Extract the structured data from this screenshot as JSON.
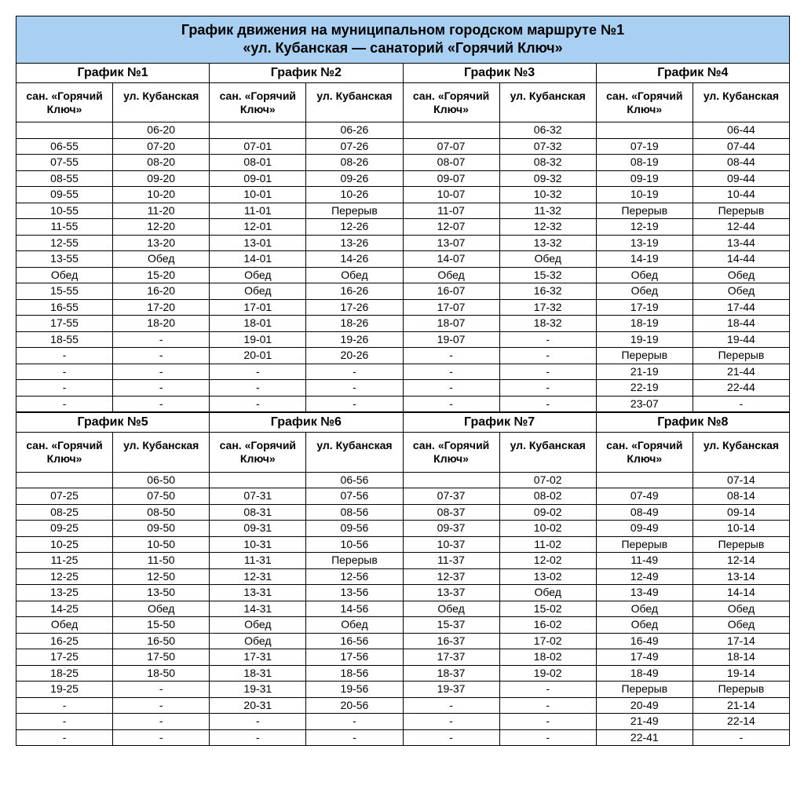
{
  "title_line1": "График движения на муниципальном городском маршруте №1",
  "title_line2": "«ул. Кубанская — санаторий «Горячий Ключ»",
  "header_stop1": "сан. «Горячий Ключ»",
  "header_stop2": "ул. Кубанская",
  "colors": {
    "title_bg": "#a9d0f2",
    "border": "#000000",
    "text": "#000000",
    "bg": "#ffffff"
  },
  "sections": [
    {
      "graphs": [
        {
          "label": "График №1",
          "rows": [
            [
              "",
              "06-20"
            ],
            [
              "06-55",
              "07-20"
            ],
            [
              "07-55",
              "08-20"
            ],
            [
              "08-55",
              "09-20"
            ],
            [
              "09-55",
              "10-20"
            ],
            [
              "10-55",
              "11-20"
            ],
            [
              "11-55",
              "12-20"
            ],
            [
              "12-55",
              "13-20"
            ],
            [
              "13-55",
              "Обед"
            ],
            [
              "Обед",
              "15-20"
            ],
            [
              "15-55",
              "16-20"
            ],
            [
              "16-55",
              "17-20"
            ],
            [
              "17-55",
              "18-20"
            ],
            [
              "18-55",
              "-"
            ],
            [
              "-",
              "-"
            ],
            [
              "-",
              "-"
            ],
            [
              "-",
              "-"
            ],
            [
              "-",
              "-"
            ]
          ]
        },
        {
          "label": "График №2",
          "rows": [
            [
              "",
              "06-26"
            ],
            [
              "07-01",
              "07-26"
            ],
            [
              "08-01",
              "08-26"
            ],
            [
              "09-01",
              "09-26"
            ],
            [
              "10-01",
              "10-26"
            ],
            [
              "11-01",
              "Перерыв"
            ],
            [
              "12-01",
              "12-26"
            ],
            [
              "13-01",
              "13-26"
            ],
            [
              "14-01",
              "14-26"
            ],
            [
              "Обед",
              "Обед"
            ],
            [
              "Обед",
              "16-26"
            ],
            [
              "17-01",
              "17-26"
            ],
            [
              "18-01",
              "18-26"
            ],
            [
              "19-01",
              "19-26"
            ],
            [
              "20-01",
              "20-26"
            ],
            [
              "-",
              "-"
            ],
            [
              "-",
              "-"
            ],
            [
              "-",
              "-"
            ]
          ]
        },
        {
          "label": "График №3",
          "rows": [
            [
              "",
              "06-32"
            ],
            [
              "07-07",
              "07-32"
            ],
            [
              "08-07",
              "08-32"
            ],
            [
              "09-07",
              "09-32"
            ],
            [
              "10-07",
              "10-32"
            ],
            [
              "11-07",
              "11-32"
            ],
            [
              "12-07",
              "12-32"
            ],
            [
              "13-07",
              "13-32"
            ],
            [
              "14-07",
              "Обед"
            ],
            [
              "Обед",
              "15-32"
            ],
            [
              "16-07",
              "16-32"
            ],
            [
              "17-07",
              "17-32"
            ],
            [
              "18-07",
              "18-32"
            ],
            [
              "19-07",
              "-"
            ],
            [
              "-",
              "-"
            ],
            [
              "-",
              "-"
            ],
            [
              "-",
              "-"
            ],
            [
              "-",
              "-"
            ]
          ]
        },
        {
          "label": "График №4",
          "rows": [
            [
              "",
              "06-44"
            ],
            [
              "07-19",
              "07-44"
            ],
            [
              "08-19",
              "08-44"
            ],
            [
              "09-19",
              "09-44"
            ],
            [
              "10-19",
              "10-44"
            ],
            [
              "Перерыв",
              "Перерыв"
            ],
            [
              "12-19",
              "12-44"
            ],
            [
              "13-19",
              "13-44"
            ],
            [
              "14-19",
              "14-44"
            ],
            [
              "Обед",
              "Обед"
            ],
            [
              "Обед",
              "Обед"
            ],
            [
              "17-19",
              "17-44"
            ],
            [
              "18-19",
              "18-44"
            ],
            [
              "19-19",
              "19-44"
            ],
            [
              "Перерыв",
              "Перерыв"
            ],
            [
              "21-19",
              "21-44"
            ],
            [
              "22-19",
              "22-44"
            ],
            [
              "23-07",
              "-"
            ]
          ]
        }
      ]
    },
    {
      "graphs": [
        {
          "label": "График №5",
          "rows": [
            [
              "",
              "06-50"
            ],
            [
              "07-25",
              "07-50"
            ],
            [
              "08-25",
              "08-50"
            ],
            [
              "09-25",
              "09-50"
            ],
            [
              "10-25",
              "10-50"
            ],
            [
              "11-25",
              "11-50"
            ],
            [
              "12-25",
              "12-50"
            ],
            [
              "13-25",
              "13-50"
            ],
            [
              "14-25",
              "Обед"
            ],
            [
              "Обед",
              "15-50"
            ],
            [
              "16-25",
              "16-50"
            ],
            [
              "17-25",
              "17-50"
            ],
            [
              "18-25",
              "18-50"
            ],
            [
              "19-25",
              "-"
            ],
            [
              "-",
              "-"
            ],
            [
              "-",
              "-"
            ],
            [
              "-",
              "-"
            ]
          ]
        },
        {
          "label": "График №6",
          "rows": [
            [
              "",
              "06-56"
            ],
            [
              "07-31",
              "07-56"
            ],
            [
              "08-31",
              "08-56"
            ],
            [
              "09-31",
              "09-56"
            ],
            [
              "10-31",
              "10-56"
            ],
            [
              "11-31",
              "Перерыв"
            ],
            [
              "12-31",
              "12-56"
            ],
            [
              "13-31",
              "13-56"
            ],
            [
              "14-31",
              "14-56"
            ],
            [
              "Обед",
              "Обед"
            ],
            [
              "Обед",
              "16-56"
            ],
            [
              "17-31",
              "17-56"
            ],
            [
              "18-31",
              "18-56"
            ],
            [
              "19-31",
              "19-56"
            ],
            [
              "20-31",
              "20-56"
            ],
            [
              "-",
              "-"
            ],
            [
              "-",
              "-"
            ]
          ]
        },
        {
          "label": "График №7",
          "rows": [
            [
              "",
              "07-02"
            ],
            [
              "07-37",
              "08-02"
            ],
            [
              "08-37",
              "09-02"
            ],
            [
              "09-37",
              "10-02"
            ],
            [
              "10-37",
              "11-02"
            ],
            [
              "11-37",
              "12-02"
            ],
            [
              "12-37",
              "13-02"
            ],
            [
              "13-37",
              "Обед"
            ],
            [
              "Обед",
              "15-02"
            ],
            [
              "15-37",
              "16-02"
            ],
            [
              "16-37",
              "17-02"
            ],
            [
              "17-37",
              "18-02"
            ],
            [
              "18-37",
              "19-02"
            ],
            [
              "19-37",
              "-"
            ],
            [
              "-",
              "-"
            ],
            [
              "-",
              "-"
            ],
            [
              "-",
              "-"
            ]
          ]
        },
        {
          "label": "График №8",
          "rows": [
            [
              "",
              "07-14"
            ],
            [
              "07-49",
              "08-14"
            ],
            [
              "08-49",
              "09-14"
            ],
            [
              "09-49",
              "10-14"
            ],
            [
              "Перерыв",
              "Перерыв"
            ],
            [
              "11-49",
              "12-14"
            ],
            [
              "12-49",
              "13-14"
            ],
            [
              "13-49",
              "14-14"
            ],
            [
              "Обед",
              "Обед"
            ],
            [
              "Обед",
              "Обед"
            ],
            [
              "16-49",
              "17-14"
            ],
            [
              "17-49",
              "18-14"
            ],
            [
              "18-49",
              "19-14"
            ],
            [
              "Перерыв",
              "Перерыв"
            ],
            [
              "20-49",
              "21-14"
            ],
            [
              "21-49",
              "22-14"
            ],
            [
              "22-41",
              "-"
            ]
          ]
        }
      ]
    }
  ]
}
